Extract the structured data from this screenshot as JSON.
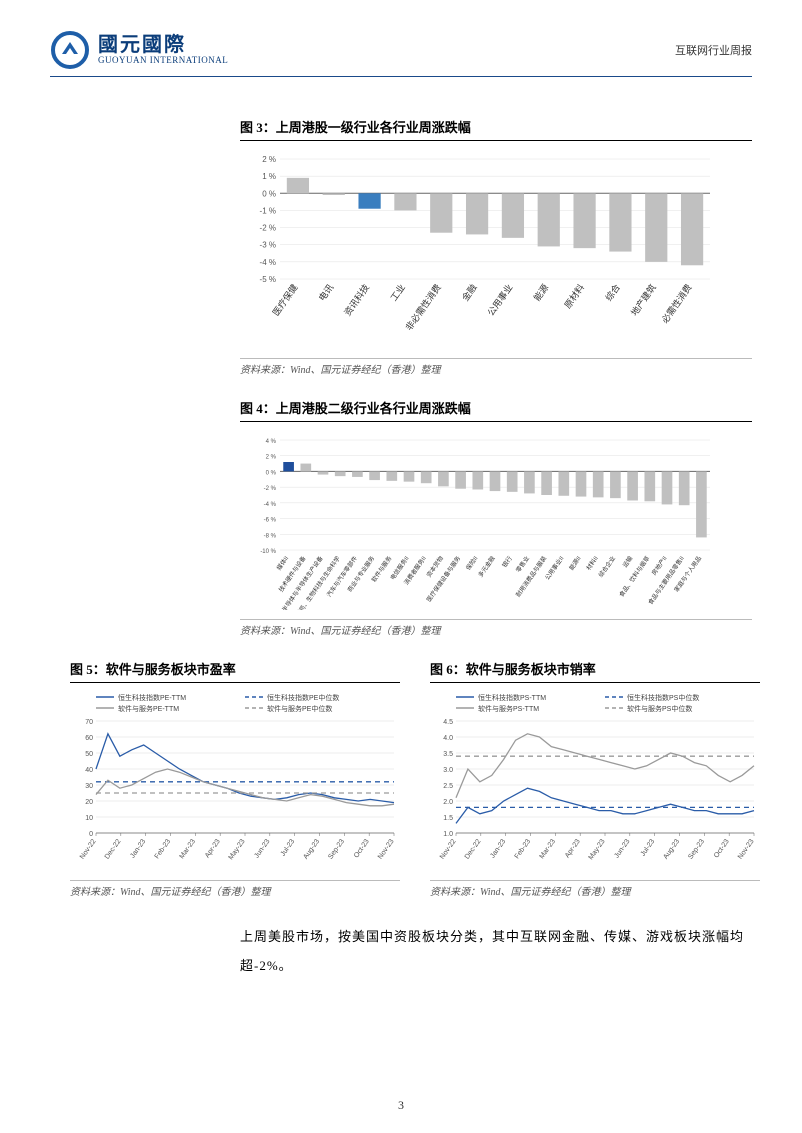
{
  "header": {
    "logo_cn": "國元國際",
    "logo_en": "GUOYUAN INTERNATIONAL",
    "right": "互联网行业周报",
    "logo_colors": {
      "ring": "#1e5ea8",
      "arrow": "#1e5ea8"
    }
  },
  "page_number": "3",
  "chart3": {
    "type": "bar",
    "title": "图 3：上周港股一级行业各行业周涨跌幅",
    "source": "资料来源：Wind、国元证券经纪（香港）整理",
    "categories": [
      "医疗保健",
      "电讯",
      "资讯科技",
      "工业",
      "非必需性消费",
      "金融",
      "公用事业",
      "能源",
      "原材料",
      "综合",
      "地产建筑",
      "必需性消费"
    ],
    "values": [
      0.9,
      -0.1,
      -0.9,
      -1.0,
      -2.3,
      -2.4,
      -2.6,
      -3.1,
      -3.2,
      -3.4,
      -4.0,
      -4.2
    ],
    "bar_colors": [
      "#c0c0c0",
      "#c0c0c0",
      "#3a7ebf",
      "#c0c0c0",
      "#c0c0c0",
      "#c0c0c0",
      "#c0c0c0",
      "#c0c0c0",
      "#c0c0c0",
      "#c0c0c0",
      "#c0c0c0",
      "#c0c0c0"
    ],
    "ylim": [
      -5,
      2
    ],
    "ytick_step": 1,
    "y_suffix": " %",
    "grid_color": "#e0e0e0",
    "axis_color": "#666666",
    "label_fontsize": 9,
    "tick_fontsize": 8
  },
  "chart4": {
    "type": "bar",
    "title": "图 4：上周港股二级行业各行业周涨跌幅",
    "source": "资料来源：Wind、国元证券经纪（香港）整理",
    "categories": [
      "媒体II",
      "技术硬件与设备",
      "半导体与半导体生产设备",
      "制药、生物科技与生命科学",
      "汽车与汽车零部件",
      "商业与专业服务",
      "软件与服务",
      "电信服务II",
      "消费者服务II",
      "资本货物",
      "医疗保健设备与服务",
      "保险II",
      "多元金融",
      "银行",
      "零售业",
      "耐用消费品与服装",
      "公用事业II",
      "能源II",
      "材料II",
      "综合企业",
      "运输",
      "食品、饮料与烟草",
      "房地产II",
      "食品与主要用品零售II",
      "家庭与个人用品"
    ],
    "values": [
      1.2,
      1.0,
      -0.4,
      -0.6,
      -0.7,
      -1.1,
      -1.2,
      -1.3,
      -1.5,
      -1.9,
      -2.2,
      -2.3,
      -2.5,
      -2.6,
      -2.8,
      -3.0,
      -3.1,
      -3.2,
      -3.3,
      -3.4,
      -3.7,
      -3.8,
      -4.2,
      -4.3,
      -8.4
    ],
    "bar_colors_map": {
      "default": "#c0c0c0",
      "highlight_index": 0,
      "highlight_color": "#1f4e9c"
    },
    "ylim": [
      -10,
      4
    ],
    "ytick_step": 2,
    "y_suffix": " %",
    "grid_color": "#e0e0e0",
    "axis_color": "#666666",
    "label_fontsize": 8,
    "tick_fontsize": 6
  },
  "chart5": {
    "type": "line",
    "title": "图 5：软件与服务板块市盈率",
    "source": "资料来源：Wind、国元证券经纪（香港）整理",
    "x_labels": [
      "Nov-22",
      "Dec-22",
      "Jan-23",
      "Feb-23",
      "Mar-23",
      "Apr-23",
      "May-23",
      "Jun-23",
      "Jul-23",
      "Aug-23",
      "Sep-23",
      "Oct-23",
      "Nov-23"
    ],
    "series": [
      {
        "name": "恒生科技指数PE-TTM",
        "color": "#2a5ca8",
        "style": "solid",
        "values": [
          40,
          62,
          48,
          52,
          55,
          50,
          45,
          40,
          36,
          32,
          30,
          28,
          25,
          23,
          22,
          21,
          22,
          24,
          25,
          24,
          22,
          21,
          20,
          21,
          20,
          19
        ]
      },
      {
        "name": "恒生科技指数PE中位数",
        "color": "#2a5ca8",
        "style": "dash",
        "values": [
          32,
          32,
          32,
          32,
          32,
          32,
          32,
          32,
          32,
          32,
          32,
          32,
          32,
          32,
          32,
          32,
          32,
          32,
          32,
          32,
          32,
          32,
          32,
          32,
          32,
          32
        ]
      },
      {
        "name": "软件与服务PE-TTM",
        "color": "#9a9a9a",
        "style": "solid",
        "values": [
          24,
          33,
          28,
          30,
          34,
          38,
          40,
          38,
          35,
          32,
          30,
          28,
          26,
          24,
          22,
          21,
          20,
          22,
          24,
          23,
          21,
          19,
          18,
          17,
          17,
          18
        ]
      },
      {
        "name": "软件与服务PE中位数",
        "color": "#9a9a9a",
        "style": "dash",
        "values": [
          25,
          25,
          25,
          25,
          25,
          25,
          25,
          25,
          25,
          25,
          25,
          25,
          25,
          25,
          25,
          25,
          25,
          25,
          25,
          25,
          25,
          25,
          25,
          25,
          25,
          25
        ]
      }
    ],
    "ylim": [
      0,
      70
    ],
    "ytick_step": 10,
    "grid_color": "#dddddd",
    "axis_color": "#666666",
    "legend_fontsize": 7,
    "tick_fontsize": 7
  },
  "chart6": {
    "type": "line",
    "title": "图 6：软件与服务板块市销率",
    "source": "资料来源：Wind、国元证券经纪（香港）整理",
    "x_labels": [
      "Nov-22",
      "Dec-22",
      "Jan-23",
      "Feb-23",
      "Mar-23",
      "Apr-23",
      "May-23",
      "Jun-23",
      "Jul-23",
      "Aug-23",
      "Sep-23",
      "Oct-23",
      "Nov-23"
    ],
    "series": [
      {
        "name": "恒生科技指数PS-TTM",
        "color": "#2a5ca8",
        "style": "solid",
        "values": [
          1.3,
          1.8,
          1.6,
          1.7,
          2.0,
          2.2,
          2.4,
          2.3,
          2.1,
          2.0,
          1.9,
          1.8,
          1.7,
          1.7,
          1.6,
          1.6,
          1.7,
          1.8,
          1.9,
          1.8,
          1.7,
          1.7,
          1.6,
          1.6,
          1.6,
          1.7
        ]
      },
      {
        "name": "恒生科技指数PS中位数",
        "color": "#2a5ca8",
        "style": "dash",
        "values": [
          1.8,
          1.8,
          1.8,
          1.8,
          1.8,
          1.8,
          1.8,
          1.8,
          1.8,
          1.8,
          1.8,
          1.8,
          1.8,
          1.8,
          1.8,
          1.8,
          1.8,
          1.8,
          1.8,
          1.8,
          1.8,
          1.8,
          1.8,
          1.8,
          1.8,
          1.8
        ]
      },
      {
        "name": "软件与服务PS-TTM",
        "color": "#9a9a9a",
        "style": "solid",
        "values": [
          2.1,
          3.0,
          2.6,
          2.8,
          3.3,
          3.9,
          4.1,
          4.0,
          3.7,
          3.6,
          3.5,
          3.4,
          3.3,
          3.2,
          3.1,
          3.0,
          3.1,
          3.3,
          3.5,
          3.4,
          3.2,
          3.1,
          2.8,
          2.6,
          2.8,
          3.1
        ]
      },
      {
        "name": "软件与服务PS中位数",
        "color": "#9a9a9a",
        "style": "dash",
        "values": [
          3.4,
          3.4,
          3.4,
          3.4,
          3.4,
          3.4,
          3.4,
          3.4,
          3.4,
          3.4,
          3.4,
          3.4,
          3.4,
          3.4,
          3.4,
          3.4,
          3.4,
          3.4,
          3.4,
          3.4,
          3.4,
          3.4,
          3.4,
          3.4,
          3.4,
          3.4
        ]
      }
    ],
    "ylim": [
      1.0,
      4.5
    ],
    "ytick_step": 0.5,
    "grid_color": "#dddddd",
    "axis_color": "#666666",
    "legend_fontsize": 7,
    "tick_fontsize": 7
  },
  "body_text": "上周美股市场，按美国中资股板块分类，其中互联网金融、传媒、游戏板块涨幅均超-2%。"
}
